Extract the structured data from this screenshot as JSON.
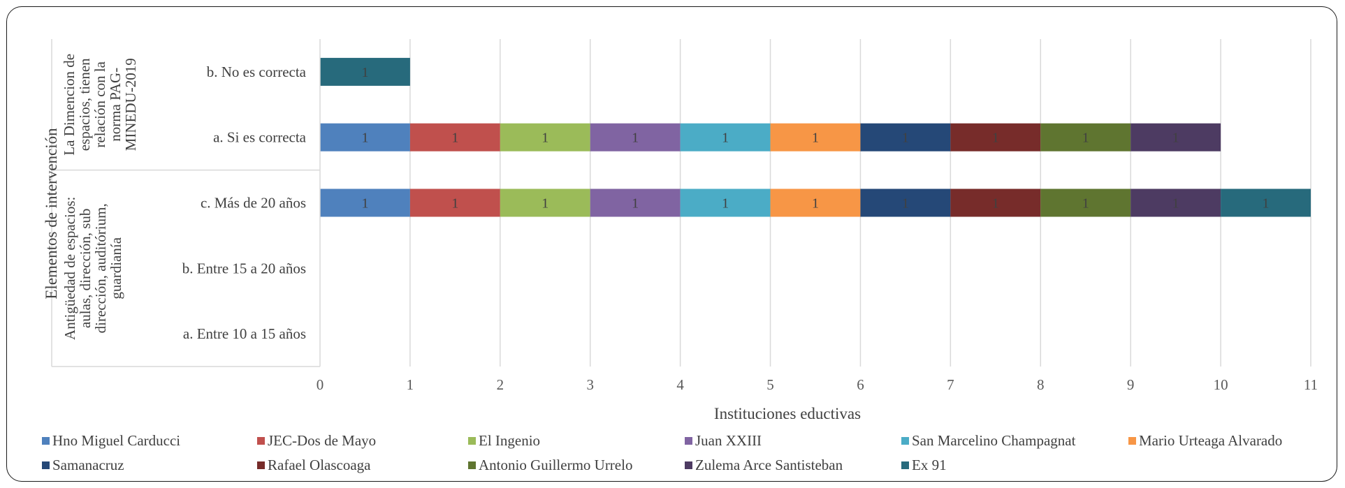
{
  "chart_data": {
    "type": "bar",
    "orientation": "horizontal",
    "stacked": true,
    "xlabel": "Instituciones eductivas",
    "ylabel": "Elementos de intervención",
    "xlim": [
      0,
      11
    ],
    "x_ticks": [
      "0",
      "1",
      "2",
      "3",
      "4",
      "5",
      "6",
      "7",
      "8",
      "9",
      "10",
      "11"
    ],
    "grid": true,
    "legend_position": "bottom",
    "groups": [
      {
        "name": "La Dimencion de espacios, tienen relación con la norma PAG-MINEDU-2019",
        "categories": [
          "b. No es correcta",
          "a. Si es correcta"
        ]
      },
      {
        "name": "Antigüedad de espacios: aulas, dirección, sub dirección, auditórium, guardianía",
        "categories": [
          "c. Más de 20 años",
          "b. Entre 15 a 20 años",
          "a. Entre 10 a 15 años"
        ]
      }
    ],
    "categories": [
      "b. No es correcta",
      "a. Si es correcta",
      "c. Más de 20 años",
      "b. Entre 15 a 20 años",
      "a. Entre 10 a 15 años"
    ],
    "series": [
      {
        "name": "Hno Miguel Carducci",
        "color": "#4f81bd",
        "values": [
          0,
          1,
          1,
          0,
          0
        ]
      },
      {
        "name": "JEC-Dos de Mayo",
        "color": "#c0504d",
        "values": [
          0,
          1,
          1,
          0,
          0
        ]
      },
      {
        "name": "El Ingenio",
        "color": "#9bbb59",
        "values": [
          0,
          1,
          1,
          0,
          0
        ]
      },
      {
        "name": "Juan XXIII",
        "color": "#8064a2",
        "values": [
          0,
          1,
          1,
          0,
          0
        ]
      },
      {
        "name": "San Marcelino Champagnat",
        "color": "#4bacc6",
        "values": [
          0,
          1,
          1,
          0,
          0
        ]
      },
      {
        "name": "Mario Urteaga Alvarado",
        "color": "#f79646",
        "values": [
          0,
          1,
          1,
          0,
          0
        ]
      },
      {
        "name": "Samanacruz",
        "color": "#254877",
        "values": [
          0,
          1,
          1,
          0,
          0
        ]
      },
      {
        "name": "Rafael Olascoaga",
        "color": "#772c2a",
        "values": [
          0,
          1,
          1,
          0,
          0
        ]
      },
      {
        "name": "Antonio Guillermo Urrelo",
        "color": "#5f7530",
        "values": [
          0,
          1,
          1,
          0,
          0
        ]
      },
      {
        "name": "Zulema Arce Santisteban",
        "color": "#4d3b62",
        "values": [
          0,
          1,
          1,
          0,
          0
        ]
      },
      {
        "name": "Ex 91",
        "color": "#276a7c",
        "values": [
          1,
          0,
          1,
          0,
          0
        ]
      }
    ],
    "data_label": "1"
  }
}
